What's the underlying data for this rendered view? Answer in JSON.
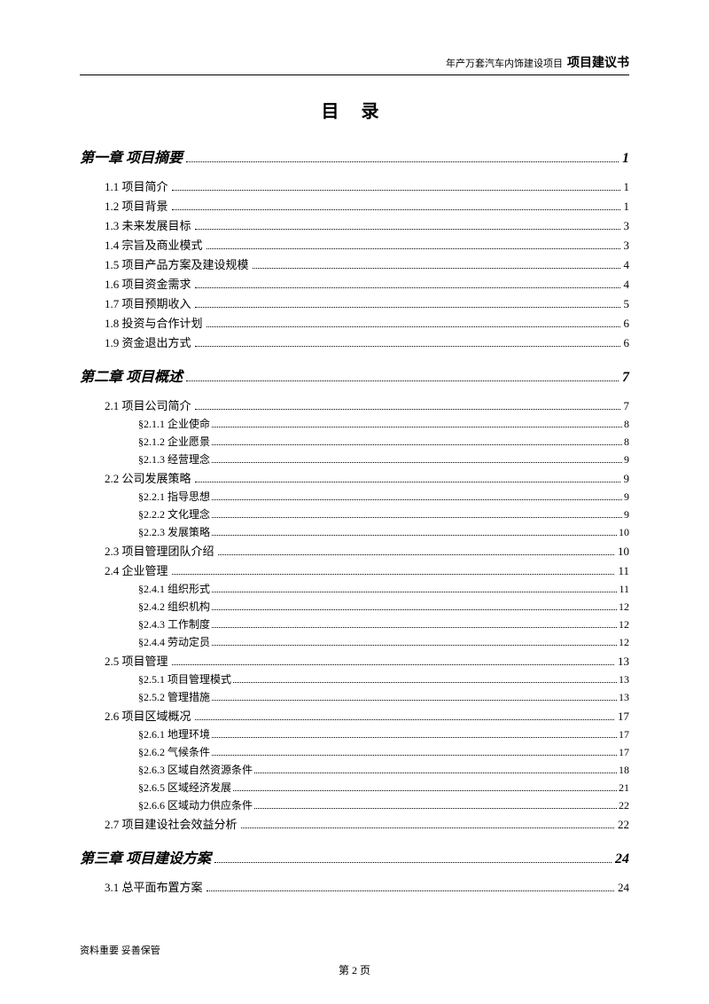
{
  "header": {
    "small": "年产万套汽车内饰建设项目",
    "bold": "项目建议书"
  },
  "title": "目 录",
  "footer": {
    "note": "资料重要  妥善保管",
    "page": "第 2 页"
  },
  "chapters": [
    {
      "label": "第一章 项目摘要",
      "page": "1",
      "sections": [
        {
          "label": "1.1 项目简介",
          "page": "1"
        },
        {
          "label": "1.2 项目背景",
          "page": "1"
        },
        {
          "label": "1.3 未来发展目标",
          "page": "3"
        },
        {
          "label": "1.4 宗旨及商业模式",
          "page": "3"
        },
        {
          "label": "1.5 项目产品方案及建设规模",
          "page": "4"
        },
        {
          "label": "1.6 项目资金需求",
          "page": "4"
        },
        {
          "label": "1.7 项目预期收入",
          "page": "5"
        },
        {
          "label": "1.8 投资与合作计划",
          "page": "6"
        },
        {
          "label": "1.9 资金退出方式",
          "page": "6"
        }
      ]
    },
    {
      "label": "第二章 项目概述",
      "page": "7",
      "sections": [
        {
          "label": "2.1 项目公司简介",
          "page": "7",
          "subs": [
            {
              "label": "§2.1.1 企业使命",
              "page": "8"
            },
            {
              "label": "§2.1.2 企业愿景",
              "page": "8"
            },
            {
              "label": "§2.1.3 经营理念",
              "page": "9"
            }
          ]
        },
        {
          "label": "2.2 公司发展策略",
          "page": "9",
          "subs": [
            {
              "label": "§2.2.1 指导思想",
              "page": "9"
            },
            {
              "label": "§2.2.2 文化理念",
              "page": "9"
            },
            {
              "label": "§2.2.3 发展策略",
              "page": "10"
            }
          ]
        },
        {
          "label": "2.3 项目管理团队介绍",
          "page": "10"
        },
        {
          "label": "2.4 企业管理",
          "page": "11",
          "subs": [
            {
              "label": "§2.4.1 组织形式",
              "page": "11"
            },
            {
              "label": "§2.4.2 组织机构",
              "page": "12"
            },
            {
              "label": "§2.4.3 工作制度",
              "page": "12"
            },
            {
              "label": "§2.4.4 劳动定员",
              "page": "12"
            }
          ]
        },
        {
          "label": "2.5 项目管理",
          "page": "13",
          "subs": [
            {
              "label": "§2.5.1 项目管理模式",
              "page": "13"
            },
            {
              "label": "§2.5.2 管理措施",
              "page": "13"
            }
          ]
        },
        {
          "label": "2.6 项目区域概况",
          "page": "17",
          "subs": [
            {
              "label": "§2.6.1 地理环境",
              "page": "17"
            },
            {
              "label": "§2.6.2 气候条件",
              "page": "17"
            },
            {
              "label": "§2.6.3 区域自然资源条件",
              "page": "18"
            },
            {
              "label": "§2.6.5 区域经济发展",
              "page": "21"
            },
            {
              "label": "§2.6.6 区域动力供应条件",
              "page": "22"
            }
          ]
        },
        {
          "label": "2.7 项目建设社会效益分析",
          "page": "22"
        }
      ]
    },
    {
      "label": "第三章 项目建设方案",
      "page": "24",
      "sections": [
        {
          "label": "3.1 总平面布置方案",
          "page": "24"
        }
      ]
    }
  ]
}
